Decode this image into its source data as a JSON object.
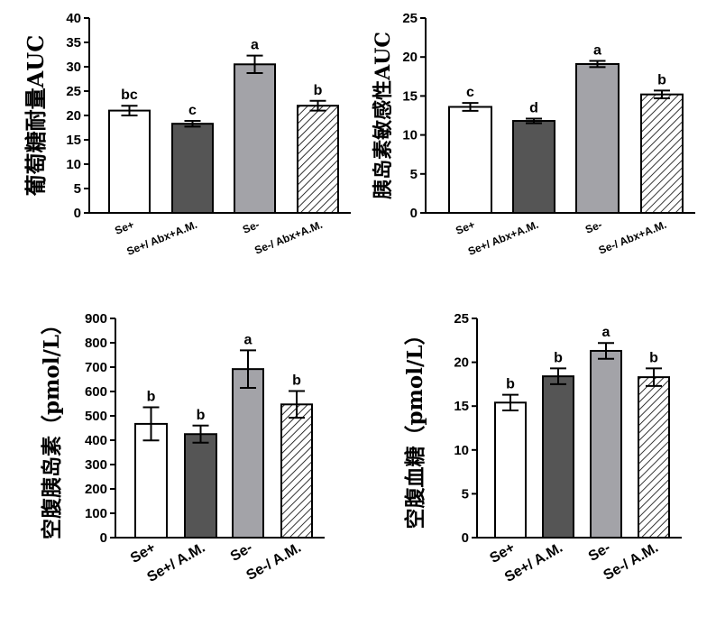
{
  "chart_data": [
    {
      "type": "bar",
      "ylabel": "葡萄糖耐量AUC",
      "ylim": [
        0,
        40
      ],
      "yticks": [
        0,
        5,
        10,
        15,
        20,
        25,
        30,
        35,
        40
      ],
      "categories": [
        "Se+",
        "Se+/ Abx+A.M.",
        "Se-",
        "Se-/ Abx+A.M."
      ],
      "values": [
        21.0,
        18.3,
        30.5,
        22.0
      ],
      "errors": [
        1.0,
        0.6,
        1.8,
        1.0
      ],
      "significance": [
        "bc",
        "c",
        "a",
        "b"
      ]
    },
    {
      "type": "bar",
      "ylabel": "胰岛素敏感性AUC",
      "ylim": [
        0,
        25
      ],
      "yticks": [
        0,
        5,
        10,
        15,
        20,
        25
      ],
      "categories": [
        "Se+",
        "Se+/ Abx+A.M.",
        "Se-",
        "Se-/ Abx+A.M."
      ],
      "values": [
        13.6,
        11.8,
        19.1,
        15.2
      ],
      "errors": [
        0.5,
        0.3,
        0.4,
        0.5
      ],
      "significance": [
        "c",
        "d",
        "a",
        "b"
      ]
    },
    {
      "type": "bar",
      "ylabel": "空腹胰岛素（pmol/L）",
      "ylim": [
        0,
        900
      ],
      "yticks": [
        0,
        100,
        200,
        300,
        400,
        500,
        600,
        700,
        800,
        900
      ],
      "categories": [
        "Se+",
        "Se+/ A.M.",
        "Se-",
        "Se-/ A.M."
      ],
      "values": [
        467,
        425,
        692,
        547
      ],
      "errors": [
        68,
        35,
        77,
        55
      ],
      "significance": [
        "b",
        "b",
        "a",
        "b"
      ]
    },
    {
      "type": "bar",
      "ylabel": "空腹血糖（pmol/L）",
      "ylim": [
        0,
        25
      ],
      "yticks": [
        0,
        5,
        10,
        15,
        20,
        25
      ],
      "categories": [
        "Se+",
        "Se+/ A.M.",
        "Se-",
        "Se-/ A.M."
      ],
      "values": [
        15.4,
        18.4,
        21.3,
        18.3
      ],
      "errors": [
        0.9,
        0.9,
        0.9,
        1.0
      ],
      "significance": [
        "b",
        "b",
        "a",
        "b"
      ]
    }
  ],
  "styles": {
    "bar_fills": [
      "#ffffff",
      "#555555",
      "#a3a3a8",
      "hatch"
    ],
    "stroke": "#000000"
  }
}
